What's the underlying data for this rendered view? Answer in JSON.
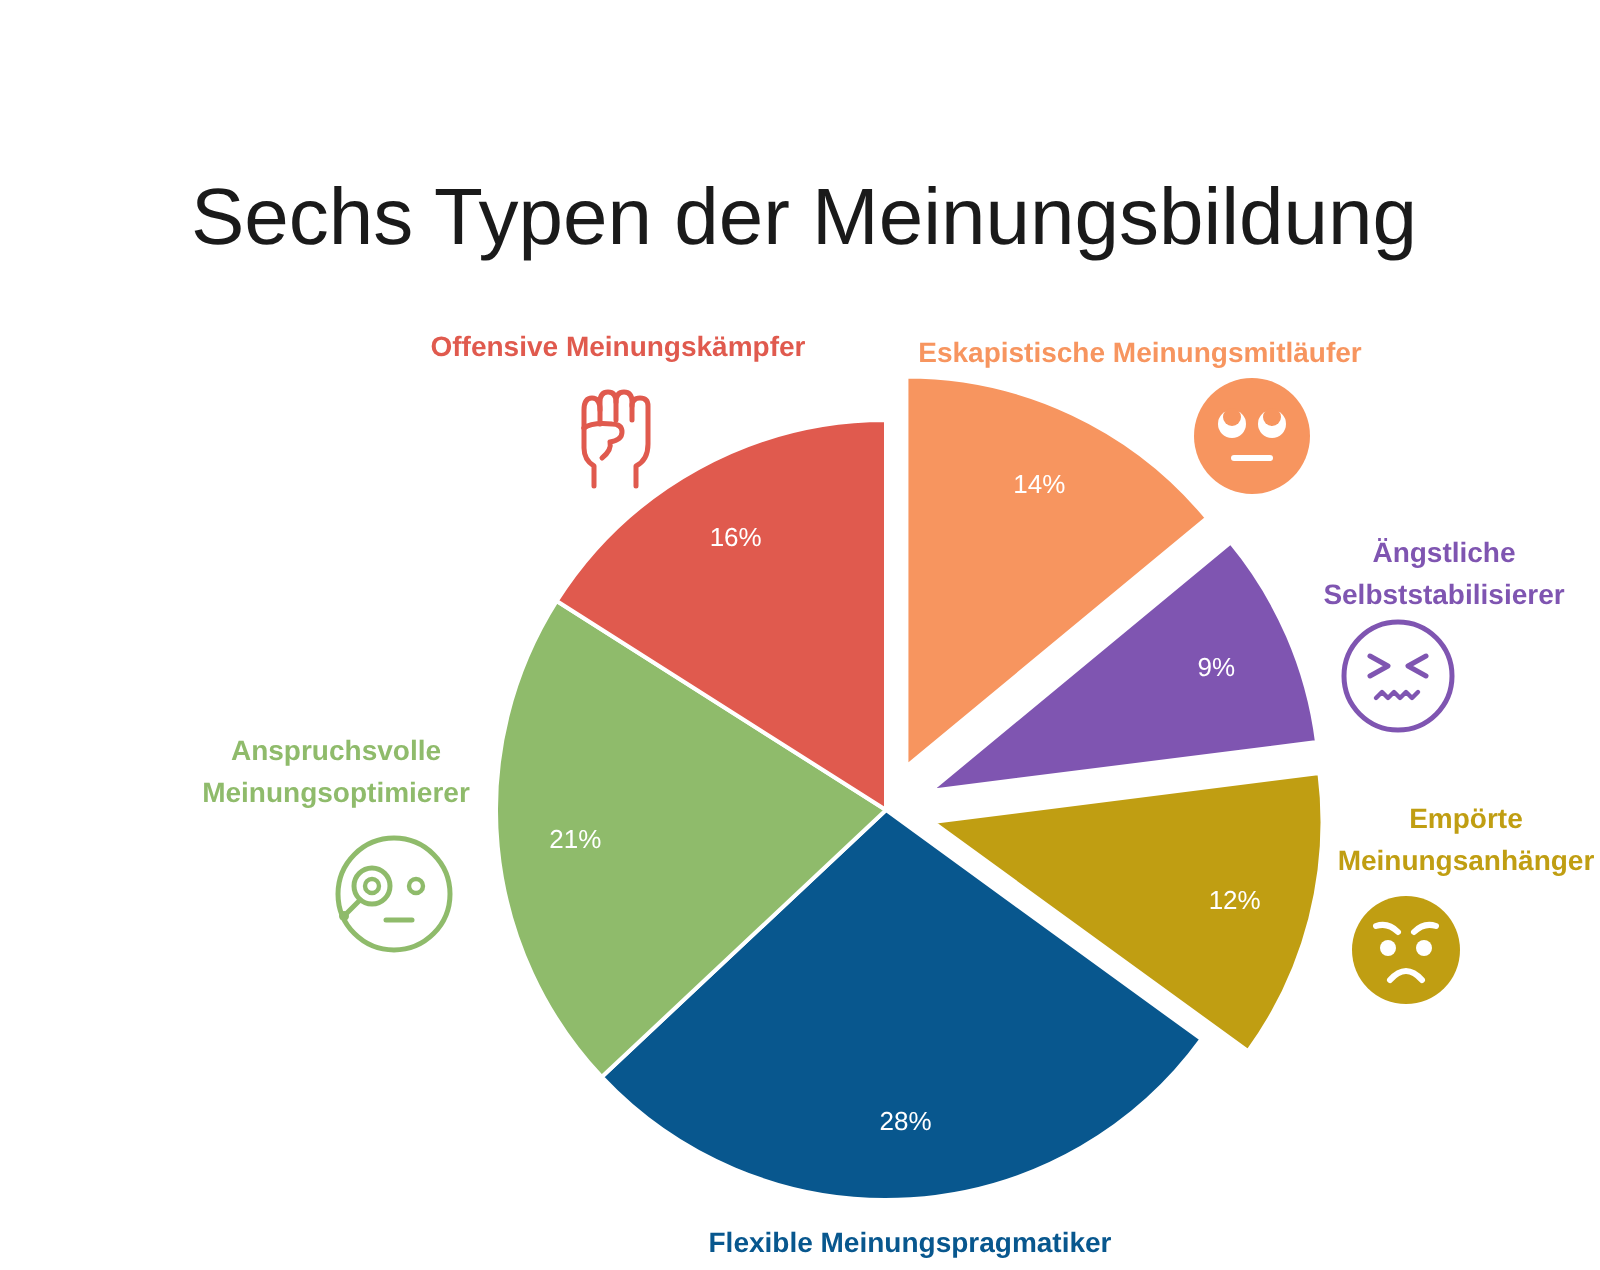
{
  "chart_data": {
    "type": "pie",
    "title": "Sechs Typen der Meinungsbildung",
    "categories": [
      "Eskapistische Meinungsmitläufer",
      "Ängstliche Selbststabilisierer",
      "Empörte Meinungsanhänger",
      "Flexible Meinungspragmatiker",
      "Anspruchsvolle Meinungsoptimierer",
      "Offensive Meinungskämpfer"
    ],
    "values": [
      14,
      9,
      12,
      28,
      21,
      16
    ],
    "colors": [
      "#f7955f",
      "#7f55b1",
      "#c09e12",
      "#08578e",
      "#8fbb6b",
      "#e05a4e"
    ],
    "value_labels": [
      "14%",
      "9%",
      "12%",
      "28%",
      "21%",
      "16%"
    ]
  }
}
